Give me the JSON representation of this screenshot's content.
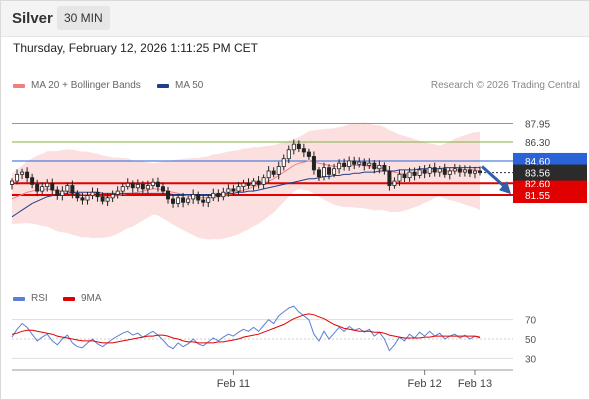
{
  "header": {
    "symbol": "Silver",
    "timeframe": "30 MIN"
  },
  "datetime": "Thursday, February 12, 2026 1:11:25 PM CET",
  "legend": {
    "ma20_label": "MA 20 + Bollinger Bands",
    "ma50_label": "MA 50",
    "ma20_color": "#f08080",
    "ma50_color": "#1e3f8a",
    "rsi_label": "RSI",
    "ma9_label": "9MA",
    "rsi_color": "#5b7fd6",
    "ma9_color": "#e00000"
  },
  "credit": "Research © 2026 Trading Central",
  "chart_data": [
    {
      "type": "candlestick",
      "title": "Silver",
      "ylim": [
        73.5,
        90.5
      ],
      "x_ticks": [
        "Feb 11",
        "Feb 12",
        "Feb 13"
      ],
      "levels": [
        {
          "value": 87.95,
          "label": "87.95",
          "kind": "resistance",
          "color": "#7cb342"
        },
        {
          "value": 86.3,
          "label": "86.30",
          "kind": "resistance",
          "color": "#7cb342"
        },
        {
          "value": 84.6,
          "label": "84.60",
          "kind": "pivot",
          "color": "#2a62d8"
        },
        {
          "value": 82.6,
          "label": "82.60",
          "kind": "support",
          "color": "#e00000"
        },
        {
          "value": 81.55,
          "label": "81.55",
          "kind": "support",
          "color": "#e00000"
        }
      ],
      "last_price": {
        "value": 83.56,
        "label": "83.56"
      },
      "forecast": "down",
      "close_series": [
        82.8,
        83.4,
        83.6,
        83.1,
        82.5,
        81.9,
        82.3,
        82.6,
        82.0,
        81.5,
        81.9,
        82.4,
        81.7,
        81.3,
        81.1,
        81.5,
        81.8,
        81.4,
        81.0,
        81.3,
        81.6,
        81.9,
        82.3,
        82.6,
        82.2,
        82.5,
        82.1,
        82.4,
        82.7,
        82.3,
        81.9,
        81.2,
        80.8,
        81.3,
        80.9,
        81.2,
        81.6,
        81.1,
        80.9,
        81.3,
        81.7,
        81.4,
        81.8,
        82.1,
        81.9,
        82.3,
        82.6,
        82.4,
        82.8,
        82.5,
        83.1,
        83.7,
        83.4,
        84.1,
        84.8,
        85.6,
        86.1,
        85.7,
        85.4,
        85.0,
        83.8,
        83.2,
        84.0,
        83.4,
        83.9,
        84.4,
        84.1,
        84.6,
        84.3,
        84.5,
        84.2,
        84.4,
        83.9,
        84.2,
        83.7,
        82.4,
        82.8,
        83.4,
        83.1,
        83.6,
        83.3,
        83.8,
        83.5,
        84.0,
        83.6,
        83.9,
        83.4,
        83.7,
        83.9,
        83.6,
        83.8,
        83.5,
        83.7,
        83.56
      ],
      "ma20_series": [
        81.2,
        81.4,
        81.6,
        81.8,
        81.9,
        82.0,
        82.0,
        82.1,
        82.0,
        81.9,
        81.9,
        81.9,
        81.8,
        81.7,
        81.6,
        81.6,
        81.5,
        81.5,
        81.4,
        81.4,
        81.4,
        81.5,
        81.6,
        81.7,
        81.7,
        81.8,
        81.9,
        82.0,
        82.1,
        82.1,
        82.0,
        81.9,
        81.8,
        81.7,
        81.6,
        81.5,
        81.4,
        81.3,
        81.3,
        81.3,
        81.4,
        81.4,
        81.5,
        81.6,
        81.7,
        81.8,
        82.0,
        82.1,
        82.3,
        82.4,
        82.6,
        82.8,
        83.0,
        83.3,
        83.6,
        83.9,
        84.2,
        84.4,
        84.5,
        84.6,
        84.5,
        84.4,
        84.3,
        84.2,
        84.1,
        84.1,
        84.1,
        84.2,
        84.2,
        84.2,
        84.2,
        84.1,
        84.0,
        84.0,
        83.9,
        83.7,
        83.6,
        83.5,
        83.5,
        83.5,
        83.5,
        83.5,
        83.6,
        83.6,
        83.7,
        83.7,
        83.7,
        83.7,
        83.8,
        83.8,
        83.8,
        83.8,
        83.8,
        83.7
      ],
      "ma50_series": [
        79.6,
        79.9,
        80.2,
        80.5,
        80.8,
        81.0,
        81.2,
        81.4,
        81.5,
        81.6,
        81.7,
        81.7,
        81.8,
        81.8,
        81.8,
        81.8,
        81.8,
        81.8,
        81.7,
        81.7,
        81.7,
        81.7,
        81.7,
        81.7,
        81.7,
        81.7,
        81.7,
        81.7,
        81.7,
        81.7,
        81.7,
        81.7,
        81.6,
        81.6,
        81.6,
        81.6,
        81.6,
        81.6,
        81.6,
        81.6,
        81.6,
        81.6,
        81.7,
        81.7,
        81.7,
        81.8,
        81.8,
        81.9,
        81.9,
        82.0,
        82.1,
        82.2,
        82.3,
        82.4,
        82.5,
        82.6,
        82.7,
        82.8,
        82.9,
        83.0,
        83.0,
        83.1,
        83.2,
        83.2,
        83.3,
        83.3,
        83.4,
        83.4,
        83.5,
        83.5,
        83.6,
        83.6,
        83.6,
        83.7,
        83.7,
        83.7,
        83.7,
        83.8,
        83.8,
        83.8,
        83.8,
        83.9,
        83.9,
        83.9,
        83.9,
        83.9,
        84.0,
        84.0,
        84.0,
        84.0,
        84.0,
        84.0,
        84.0,
        84.0
      ]
    },
    {
      "type": "line",
      "title": "RSI",
      "ylim": [
        20,
        80
      ],
      "y_ticks": [
        70,
        50,
        30
      ],
      "x_ticks": [
        "Feb 11",
        "Feb 12",
        "Feb 13"
      ],
      "series": [
        {
          "name": "RSI",
          "values": [
            52,
            60,
            66,
            62,
            55,
            48,
            52,
            55,
            48,
            44,
            50,
            54,
            46,
            42,
            41,
            46,
            50,
            45,
            42,
            46,
            50,
            53,
            56,
            58,
            54,
            56,
            52,
            55,
            58,
            54,
            49,
            43,
            40,
            46,
            42,
            45,
            50,
            45,
            43,
            47,
            51,
            48,
            52,
            55,
            53,
            57,
            60,
            58,
            62,
            58,
            64,
            70,
            66,
            74,
            78,
            82,
            84,
            78,
            74,
            70,
            55,
            48,
            58,
            50,
            56,
            62,
            58,
            63,
            59,
            61,
            57,
            60,
            53,
            57,
            50,
            38,
            44,
            52,
            48,
            55,
            51,
            57,
            53,
            58,
            53,
            56,
            50,
            53,
            55,
            51,
            54,
            50,
            53,
            51
          ]
        },
        {
          "name": "9MA",
          "values": [
            55,
            56,
            58,
            59,
            59,
            58,
            57,
            56,
            55,
            53,
            52,
            51,
            50,
            49,
            48,
            48,
            48,
            47,
            46,
            46,
            46,
            47,
            48,
            49,
            50,
            51,
            52,
            53,
            53,
            54,
            54,
            53,
            51,
            50,
            48,
            47,
            47,
            46,
            46,
            46,
            46,
            47,
            47,
            48,
            49,
            50,
            52,
            53,
            54,
            55,
            57,
            59,
            61,
            63,
            65,
            68,
            71,
            73,
            75,
            76,
            75,
            73,
            71,
            68,
            65,
            63,
            61,
            60,
            59,
            58,
            58,
            58,
            57,
            57,
            56,
            54,
            53,
            52,
            51,
            51,
            51,
            51,
            52,
            52,
            53,
            53,
            53,
            53,
            53,
            53,
            53,
            53,
            53,
            52
          ]
        }
      ]
    }
  ]
}
